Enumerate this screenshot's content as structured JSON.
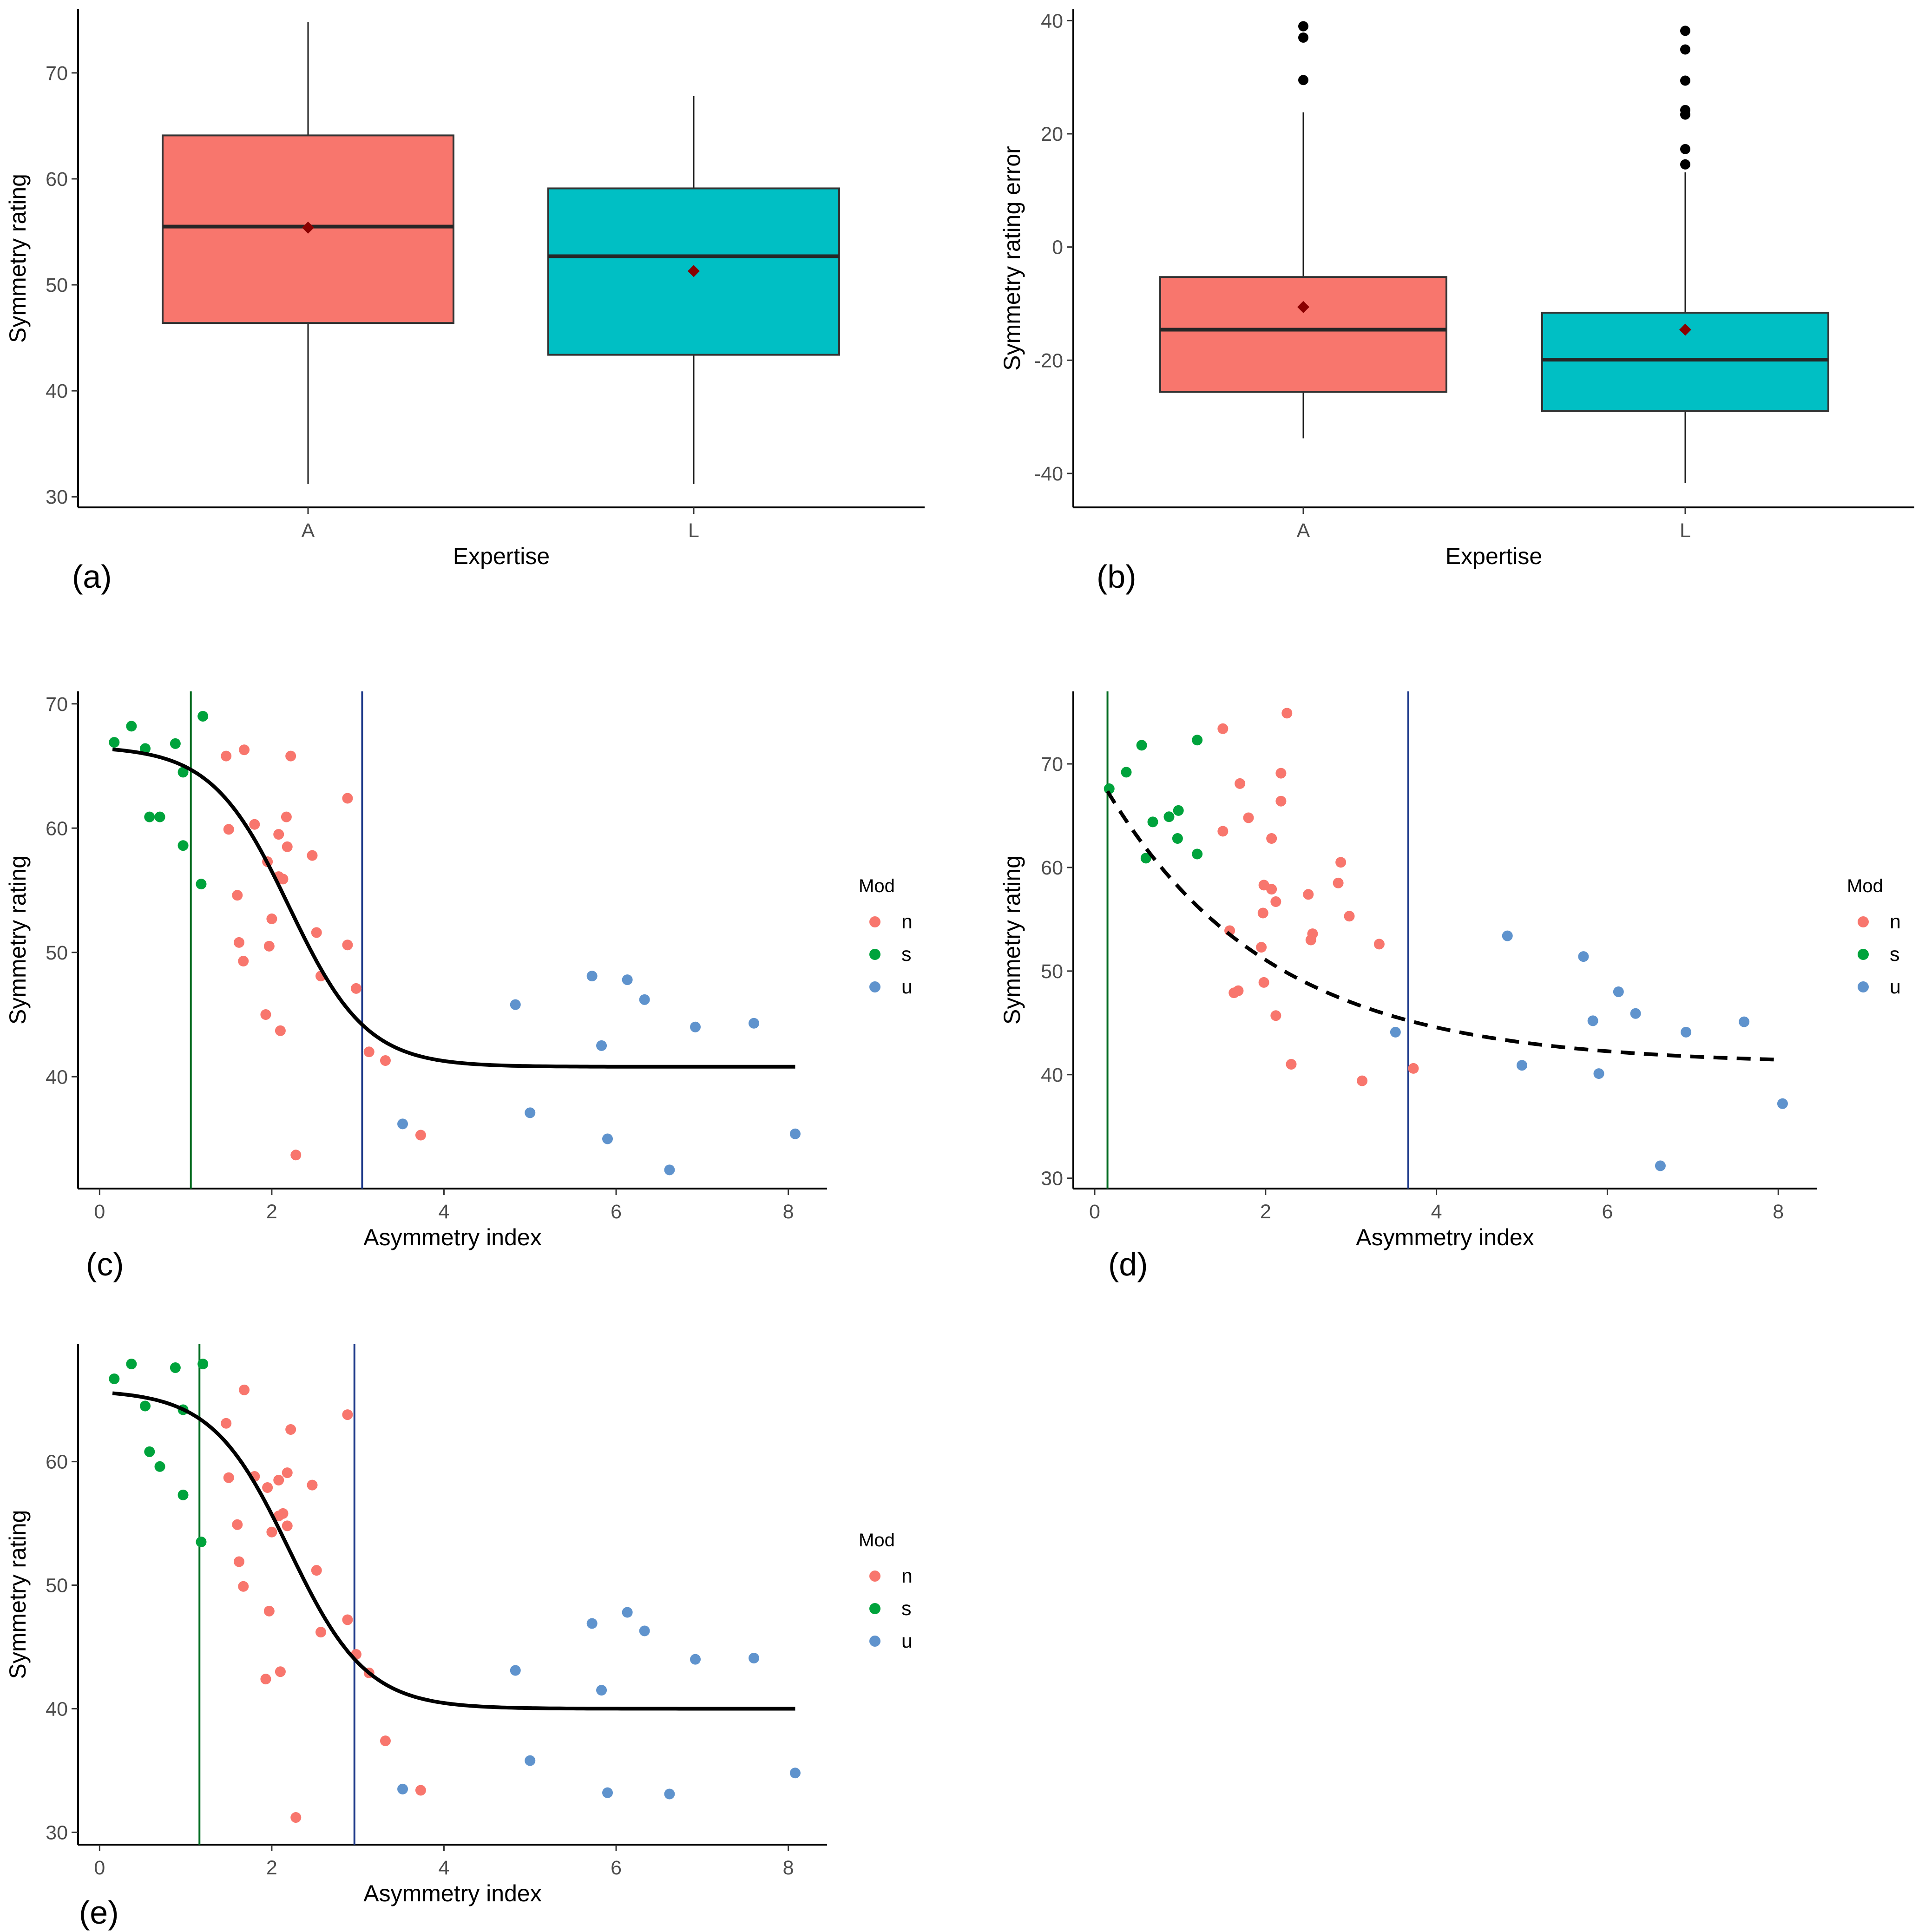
{
  "colors": {
    "A_fill": "#F8766D",
    "L_fill": "#00BFC4",
    "n": "#F8766D",
    "s": "#00A33C",
    "u": "#5F93CD",
    "mean_marker": "#8B0000",
    "vline_green": "#006B1F",
    "vline_blue": "#1E3A8A"
  },
  "chart_data": [
    {
      "id": "a",
      "panel_label": "(a)",
      "type": "boxplot",
      "xlabel": "Expertise",
      "ylabel": "Symmetry rating",
      "ylim": [
        29,
        76
      ],
      "yticks": [
        30,
        40,
        50,
        60,
        70
      ],
      "categories": [
        "A",
        "L"
      ],
      "boxes": [
        {
          "category": "A",
          "whisker_low": 31.2,
          "q1": 46.4,
          "median": 55.5,
          "q3": 64.1,
          "whisker_high": 74.8,
          "mean": 55.4,
          "outliers": []
        },
        {
          "category": "L",
          "whisker_low": 31.2,
          "q1": 43.4,
          "median": 52.7,
          "q3": 59.1,
          "whisker_high": 67.8,
          "mean": 51.3,
          "outliers": []
        }
      ]
    },
    {
      "id": "b",
      "panel_label": "(b)",
      "type": "boxplot",
      "xlabel": "Expertise",
      "ylabel": "Symmetry rating error",
      "ylim": [
        -46,
        42
      ],
      "yticks": [
        -40,
        -20,
        0,
        20,
        40
      ],
      "categories": [
        "A",
        "L"
      ],
      "boxes": [
        {
          "category": "A",
          "whisker_low": -33.8,
          "q1": -25.6,
          "median": -14.6,
          "q3": -5.3,
          "whisker_high": 23.8,
          "mean": -10.6,
          "outliers": [
            29.5,
            37.0,
            39.0
          ]
        },
        {
          "category": "L",
          "whisker_low": -41.7,
          "q1": -29.0,
          "median": -19.9,
          "q3": -11.6,
          "whisker_high": 13.2,
          "mean": -14.6,
          "outliers": [
            14.6,
            17.3,
            23.4,
            24.2,
            29.4,
            34.9,
            38.2
          ]
        }
      ]
    },
    {
      "id": "c",
      "panel_label": "(c)",
      "type": "scatter",
      "xlabel": "Asymmetry index",
      "ylabel": "Symmetry rating",
      "xlim": [
        -0.25,
        8.45
      ],
      "ylim": [
        31,
        71
      ],
      "xticks": [
        0,
        2,
        4,
        6,
        8
      ],
      "yticks": [
        40,
        50,
        60,
        70
      ],
      "legend": {
        "title": "Mod",
        "labels": [
          "n",
          "s",
          "u"
        ]
      },
      "vlines": [
        {
          "x": 1.06,
          "color": "green"
        },
        {
          "x": 3.05,
          "color": "blue"
        }
      ],
      "curve": {
        "style": "solid",
        "bottom": 40.8,
        "top": 66.6,
        "mid": 2.2,
        "scale": 0.45,
        "xmin": 0.15,
        "xmax": 8.08
      },
      "series": [
        {
          "name": "n",
          "points": [
            [
              1.47,
              65.8
            ],
            [
              1.68,
              66.3
            ],
            [
              2.22,
              65.8
            ],
            [
              2.88,
              62.4
            ],
            [
              1.5,
              59.9
            ],
            [
              1.8,
              60.3
            ],
            [
              2.08,
              59.5
            ],
            [
              2.17,
              60.9
            ],
            [
              2.18,
              58.5
            ],
            [
              1.95,
              57.3
            ],
            [
              2.47,
              57.8
            ],
            [
              2.08,
              56.1
            ],
            [
              2.13,
              55.9
            ],
            [
              1.6,
              54.6
            ],
            [
              2.0,
              52.7
            ],
            [
              2.52,
              51.6
            ],
            [
              1.62,
              50.8
            ],
            [
              1.97,
              50.5
            ],
            [
              2.88,
              50.6
            ],
            [
              1.67,
              49.3
            ],
            [
              2.57,
              48.1
            ],
            [
              2.98,
              47.1
            ],
            [
              1.93,
              45.0
            ],
            [
              2.1,
              43.7
            ],
            [
              3.13,
              42.0
            ],
            [
              3.32,
              41.3
            ],
            [
              3.73,
              35.3
            ],
            [
              2.28,
              33.7
            ]
          ]
        },
        {
          "name": "s",
          "points": [
            [
              0.17,
              66.9
            ],
            [
              0.37,
              68.2
            ],
            [
              0.53,
              66.4
            ],
            [
              0.88,
              66.8
            ],
            [
              0.97,
              64.5
            ],
            [
              1.2,
              69.0
            ],
            [
              0.58,
              60.9
            ],
            [
              0.7,
              60.9
            ],
            [
              0.97,
              58.6
            ],
            [
              1.18,
              55.5
            ]
          ]
        },
        {
          "name": "u",
          "points": [
            [
              4.83,
              45.8
            ],
            [
              5.72,
              48.1
            ],
            [
              6.13,
              47.8
            ],
            [
              6.33,
              46.2
            ],
            [
              5.83,
              42.5
            ],
            [
              6.92,
              44.0
            ],
            [
              7.6,
              44.3
            ],
            [
              3.52,
              36.2
            ],
            [
              5.0,
              37.1
            ],
            [
              5.9,
              35.0
            ],
            [
              6.62,
              32.5
            ],
            [
              8.08,
              35.4
            ]
          ]
        }
      ]
    },
    {
      "id": "d",
      "panel_label": "(d)",
      "type": "scatter",
      "xlabel": "Asymmetry index",
      "ylabel": "Symmetry rating",
      "xlim": [
        -0.25,
        8.45
      ],
      "ylim": [
        29,
        77
      ],
      "xticks": [
        0,
        2,
        4,
        6,
        8
      ],
      "yticks": [
        30,
        40,
        50,
        60,
        70
      ],
      "legend": {
        "title": "Mod",
        "labels": [
          "n",
          "s",
          "u"
        ]
      },
      "vlines": [
        {
          "x": 0.15,
          "color": "green"
        },
        {
          "x": 3.67,
          "color": "blue"
        }
      ],
      "curve": {
        "style": "dashed",
        "asym": 41.0,
        "amp": 28.5,
        "rate": 0.52,
        "xmin": 0.15,
        "xmax": 8.05
      },
      "series": [
        {
          "name": "n",
          "points": [
            [
              2.25,
              74.9
            ],
            [
              1.5,
              73.4
            ],
            [
              2.18,
              69.1
            ],
            [
              1.7,
              68.1
            ],
            [
              2.18,
              66.4
            ],
            [
              1.8,
              64.8
            ],
            [
              1.5,
              63.5
            ],
            [
              2.07,
              62.8
            ],
            [
              2.88,
              60.5
            ],
            [
              1.98,
              58.3
            ],
            [
              2.07,
              57.9
            ],
            [
              2.5,
              57.4
            ],
            [
              2.85,
              58.5
            ],
            [
              2.12,
              56.7
            ],
            [
              1.97,
              55.6
            ],
            [
              2.98,
              55.3
            ],
            [
              1.58,
              53.9
            ],
            [
              2.55,
              53.6
            ],
            [
              2.53,
              53.0
            ],
            [
              3.33,
              52.6
            ],
            [
              1.95,
              52.3
            ],
            [
              1.98,
              48.9
            ],
            [
              1.68,
              48.1
            ],
            [
              1.63,
              47.9
            ],
            [
              2.12,
              45.7
            ],
            [
              2.3,
              41.0
            ],
            [
              3.13,
              39.4
            ],
            [
              3.73,
              40.6
            ]
          ]
        },
        {
          "name": "s",
          "points": [
            [
              0.17,
              67.6
            ],
            [
              0.37,
              69.2
            ],
            [
              0.55,
              71.8
            ],
            [
              1.2,
              72.3
            ],
            [
              0.68,
              64.4
            ],
            [
              0.87,
              64.9
            ],
            [
              0.98,
              65.5
            ],
            [
              0.97,
              62.8
            ],
            [
              1.2,
              61.3
            ],
            [
              0.6,
              60.9
            ]
          ]
        },
        {
          "name": "u",
          "points": [
            [
              4.83,
              53.4
            ],
            [
              5.72,
              51.4
            ],
            [
              6.13,
              48.0
            ],
            [
              5.83,
              45.2
            ],
            [
              6.33,
              45.9
            ],
            [
              6.92,
              44.1
            ],
            [
              7.6,
              45.1
            ],
            [
              3.52,
              44.1
            ],
            [
              5.0,
              40.9
            ],
            [
              5.9,
              40.1
            ],
            [
              8.05,
              37.2
            ],
            [
              6.62,
              31.2
            ]
          ]
        }
      ]
    },
    {
      "id": "e",
      "panel_label": "(e)",
      "type": "scatter",
      "xlabel": "Asymmetry index",
      "ylabel": "Symmetry rating",
      "xlim": [
        -0.25,
        8.45
      ],
      "ylim": [
        29,
        69.5
      ],
      "xticks": [
        0,
        2,
        4,
        6,
        8
      ],
      "yticks": [
        30,
        40,
        50,
        60
      ],
      "legend": {
        "title": "Mod",
        "labels": [
          "n",
          "s",
          "u"
        ]
      },
      "vlines": [
        {
          "x": 1.16,
          "color": "green"
        },
        {
          "x": 2.96,
          "color": "blue"
        }
      ],
      "curve": {
        "style": "solid",
        "bottom": 40.0,
        "top": 65.8,
        "mid": 2.2,
        "scale": 0.45,
        "xmin": 0.15,
        "xmax": 8.08
      },
      "series": [
        {
          "name": "n",
          "points": [
            [
              1.68,
              65.8
            ],
            [
              2.88,
              63.8
            ],
            [
              1.47,
              63.1
            ],
            [
              2.22,
              62.6
            ],
            [
              1.8,
              58.8
            ],
            [
              2.18,
              59.1
            ],
            [
              2.08,
              58.5
            ],
            [
              1.95,
              57.9
            ],
            [
              2.47,
              58.1
            ],
            [
              1.5,
              58.7
            ],
            [
              2.08,
              55.6
            ],
            [
              2.13,
              55.8
            ],
            [
              2.18,
              54.8
            ],
            [
              1.6,
              54.9
            ],
            [
              2.0,
              54.3
            ],
            [
              1.62,
              51.9
            ],
            [
              2.52,
              51.2
            ],
            [
              1.67,
              49.9
            ],
            [
              1.97,
              47.9
            ],
            [
              2.88,
              47.2
            ],
            [
              2.57,
              46.2
            ],
            [
              2.98,
              44.4
            ],
            [
              3.13,
              42.9
            ],
            [
              2.1,
              43.0
            ],
            [
              1.93,
              42.4
            ],
            [
              3.32,
              37.4
            ],
            [
              3.73,
              33.4
            ],
            [
              2.28,
              31.2
            ]
          ]
        },
        {
          "name": "s",
          "points": [
            [
              0.17,
              66.7
            ],
            [
              0.37,
              67.9
            ],
            [
              0.88,
              67.6
            ],
            [
              1.2,
              67.9
            ],
            [
              0.53,
              64.5
            ],
            [
              0.97,
              64.2
            ],
            [
              0.58,
              60.8
            ],
            [
              0.7,
              59.6
            ],
            [
              0.97,
              57.3
            ],
            [
              1.18,
              53.5
            ]
          ]
        },
        {
          "name": "u",
          "points": [
            [
              4.83,
              43.1
            ],
            [
              5.72,
              46.9
            ],
            [
              6.13,
              47.8
            ],
            [
              6.33,
              46.3
            ],
            [
              5.83,
              41.5
            ],
            [
              6.92,
              44.0
            ],
            [
              7.6,
              44.1
            ],
            [
              3.52,
              33.5
            ],
            [
              5.0,
              35.8
            ],
            [
              5.9,
              33.2
            ],
            [
              6.62,
              33.1
            ],
            [
              8.08,
              34.8
            ]
          ]
        }
      ]
    }
  ]
}
